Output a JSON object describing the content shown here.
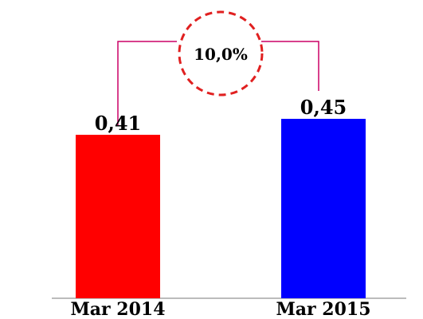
{
  "chart_data": {
    "type": "bar",
    "categories": [
      "Mar 2014",
      "Mar 2015"
    ],
    "values": [
      0.41,
      0.45
    ],
    "value_labels": [
      "0,41",
      "0,45"
    ],
    "bar_colors": [
      "#ff0000",
      "#0000ff"
    ],
    "ylim": [
      0,
      0.6
    ],
    "grid": false,
    "change_annotation": {
      "text": "10,0%",
      "bracket_color": "#cc0066",
      "circle_style": "dashed",
      "circle_color": "#e02020"
    }
  }
}
